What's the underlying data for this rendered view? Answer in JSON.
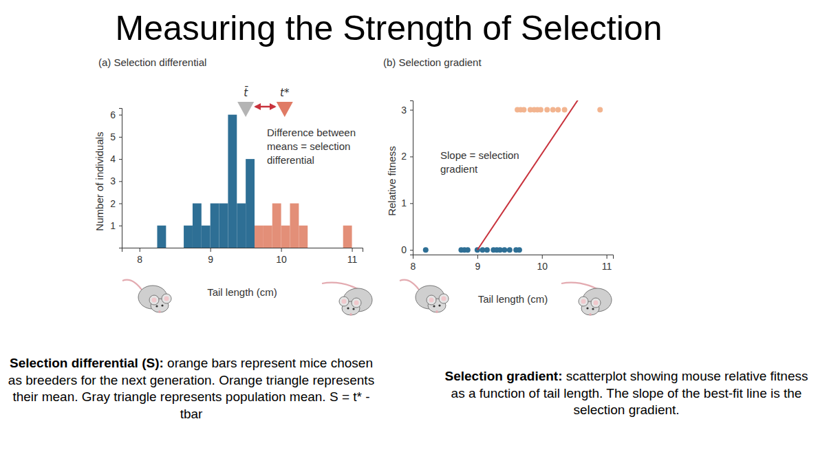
{
  "title": "Measuring the Strength of Selection",
  "chart_data": [
    {
      "type": "histogram",
      "title": "(a) Selection differential",
      "x_label": "Tail length (cm)",
      "y_label": "Number of individuals",
      "bins": [
        8.25,
        8.375,
        8.5,
        8.625,
        8.75,
        8.875,
        9,
        9.125,
        9.25,
        9.375,
        9.5,
        9.625,
        9.75,
        9.875,
        10,
        10.125,
        10.25,
        10.375,
        10.5,
        10.625,
        10.75,
        10.875,
        11
      ],
      "values": [
        1,
        0,
        0,
        1,
        2,
        1,
        2,
        2,
        6,
        2,
        4,
        1,
        1,
        2,
        1,
        2,
        1,
        0,
        0,
        0,
        0,
        1
      ],
      "colors": [
        "#2e6f95",
        "#2e6f95",
        "#2e6f95",
        "#2e6f95",
        "#2e6f95",
        "#2e6f95",
        "#2e6f95",
        "#2e6f95",
        "#2e6f95",
        "#2e6f95",
        "#2e6f95",
        "#e38f78",
        "#e38f78",
        "#e38f78",
        "#e38f78",
        "#e38f78",
        "#e38f78",
        "#e38f78",
        "#e38f78",
        "#e38f78",
        "#e38f78",
        "#e38f78"
      ],
      "xlim": [
        7.75,
        11.15
      ],
      "xticks": [
        8,
        9,
        10,
        11
      ],
      "ylim": [
        0,
        6.3
      ],
      "yticks": [
        1,
        2,
        3,
        4,
        5,
        6
      ],
      "means": [
        {
          "label": "t̄",
          "value": 9.5,
          "color": "#b4b4b4"
        },
        {
          "label": "t*",
          "value": 10.05,
          "color": "#e07b65"
        }
      ],
      "annotation": [
        "Difference between",
        "means = selection",
        "differential"
      ]
    },
    {
      "type": "scatter",
      "title": "(b) Selection gradient",
      "x_label": "Tail length (cm)",
      "y_label": "Relative fitness",
      "x": [
        8.2,
        8.75,
        8.8,
        8.85,
        9.0,
        9.08,
        9.15,
        9.25,
        9.3,
        9.35,
        9.42,
        9.5,
        9.6,
        9.65,
        9.62,
        9.67,
        9.72,
        9.82,
        9.88,
        9.93,
        9.98,
        10.08,
        10.17,
        10.25,
        10.35,
        10.9
      ],
      "values": [
        0,
        0,
        0,
        0,
        0,
        0,
        0,
        0,
        0,
        0,
        0,
        0,
        0,
        0,
        3,
        3,
        3,
        3,
        3,
        3,
        3,
        3,
        3,
        3,
        3,
        3
      ],
      "colors": [
        "#2e6f95",
        "#2e6f95",
        "#2e6f95",
        "#2e6f95",
        "#2e6f95",
        "#2e6f95",
        "#2e6f95",
        "#2e6f95",
        "#2e6f95",
        "#2e6f95",
        "#2e6f95",
        "#2e6f95",
        "#2e6f95",
        "#2e6f95",
        "#f2b48f",
        "#f2b48f",
        "#f2b48f",
        "#f2b48f",
        "#f2b48f",
        "#f2b48f",
        "#f2b48f",
        "#f2b48f",
        "#f2b48f",
        "#f2b48f",
        "#f2b48f",
        "#f2b48f"
      ],
      "fit": {
        "x": [
          9,
          10.6
        ],
        "values": [
          0,
          3.3
        ],
        "color": "#c8323c"
      },
      "xlim": [
        8,
        11.1
      ],
      "xticks": [
        8,
        9,
        10,
        11
      ],
      "ylim": [
        -0.1,
        3.2
      ],
      "yticks": [
        0,
        1,
        2,
        3
      ],
      "annotation": [
        "Slope = selection",
        "gradient"
      ]
    }
  ],
  "captions": [
    {
      "bold": "Selection differential (S):",
      "text": "orange bars represent mice chosen as breeders for the next generation. Orange triangle represents their mean. Gray triangle represents population mean. S = t* - tbar"
    },
    {
      "bold": "Selection gradient:",
      "text": "scatterplot showing mouse relative fitness as a function of tail length. The slope of the best-fit line is the selection gradient."
    }
  ]
}
